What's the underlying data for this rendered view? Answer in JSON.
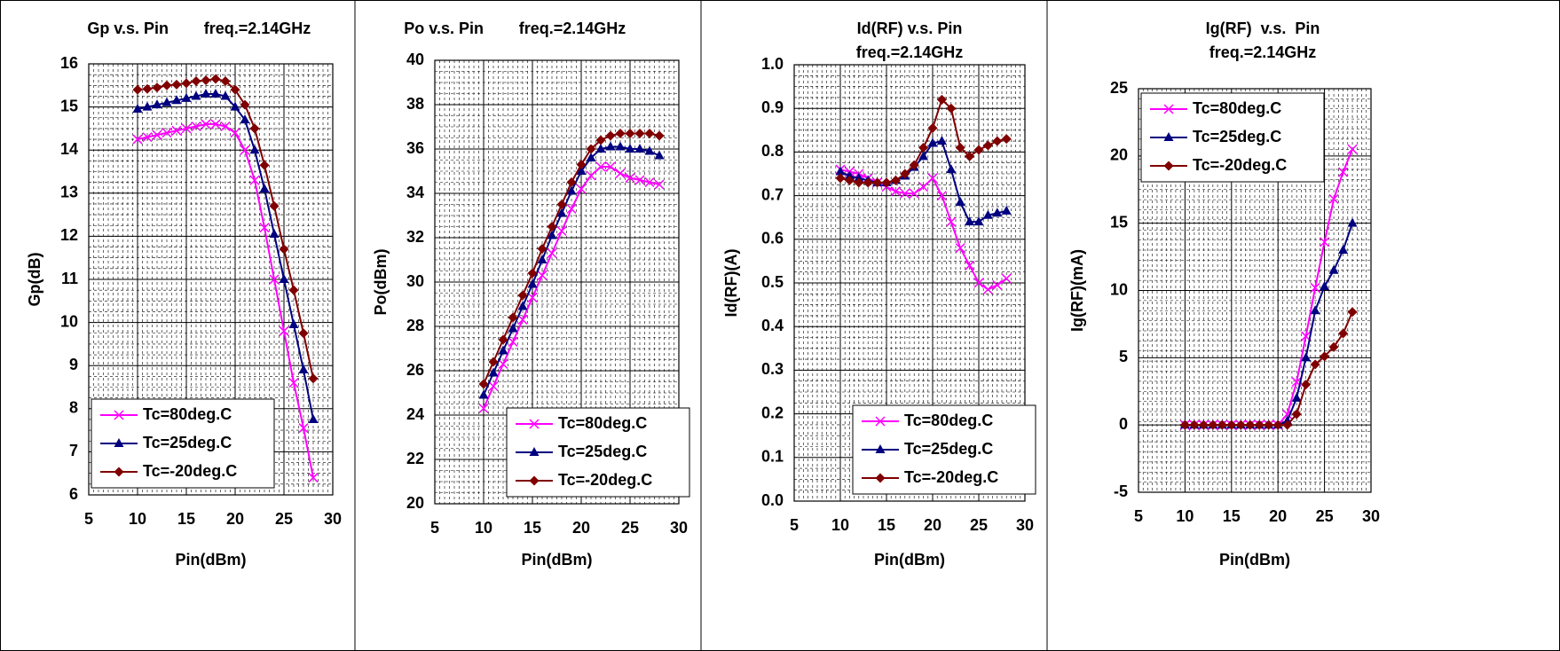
{
  "chart_data": [
    {
      "type": "line",
      "title": "Gp v.s. Pin",
      "subtitle": "freq.=2.14GHz",
      "xlabel": "Pin(dBm)",
      "ylabel": "Gp(dB)",
      "x": [
        10,
        11,
        12,
        13,
        14,
        15,
        16,
        17,
        18,
        19,
        20,
        21,
        22,
        23,
        24,
        25,
        26,
        27,
        28
      ],
      "xlim": [
        5,
        30
      ],
      "xticks": [
        5,
        10,
        15,
        20,
        25,
        30
      ],
      "ylim": [
        6,
        16
      ],
      "yticks": [
        6,
        7,
        8,
        9,
        10,
        11,
        12,
        13,
        14,
        15,
        16
      ],
      "grid": true,
      "legend": "lower left",
      "series": [
        {
          "name": "Tc=80deg.C",
          "color": "#ff00ff",
          "marker": "x",
          "values": [
            14.25,
            14.3,
            14.35,
            14.4,
            14.45,
            14.5,
            14.55,
            14.6,
            14.6,
            14.55,
            14.4,
            14.0,
            13.3,
            12.2,
            11.0,
            9.8,
            8.6,
            7.55,
            6.4
          ]
        },
        {
          "name": "Tc=25deg.C",
          "color": "#000080",
          "marker": "triangle",
          "values": [
            14.95,
            15.0,
            15.05,
            15.1,
            15.15,
            15.2,
            15.25,
            15.3,
            15.3,
            15.25,
            15.0,
            14.7,
            14.0,
            13.1,
            12.05,
            11.0,
            9.95,
            8.9,
            7.75
          ]
        },
        {
          "name": "Tc=-20deg.C",
          "color": "#800000",
          "marker": "diamond",
          "values": [
            15.4,
            15.42,
            15.45,
            15.5,
            15.52,
            15.55,
            15.6,
            15.62,
            15.65,
            15.6,
            15.4,
            15.05,
            14.5,
            13.65,
            12.7,
            11.7,
            10.75,
            9.75,
            8.7
          ]
        }
      ]
    },
    {
      "type": "line",
      "title": "Po v.s. Pin",
      "subtitle": "freq.=2.14GHz",
      "xlabel": "Pin(dBm)",
      "ylabel": "Po(dBm)",
      "x": [
        10,
        11,
        12,
        13,
        14,
        15,
        16,
        17,
        18,
        19,
        20,
        21,
        22,
        23,
        24,
        25,
        26,
        27,
        28
      ],
      "xlim": [
        5,
        30
      ],
      "xticks": [
        5,
        10,
        15,
        20,
        25,
        30
      ],
      "ylim": [
        20,
        40
      ],
      "yticks": [
        20,
        22,
        24,
        26,
        28,
        30,
        32,
        34,
        36,
        38,
        40
      ],
      "grid": true,
      "legend": "lower right",
      "series": [
        {
          "name": "Tc=80deg.C",
          "color": "#ff00ff",
          "marker": "x",
          "values": [
            24.3,
            25.3,
            26.3,
            27.3,
            28.3,
            29.3,
            30.3,
            31.3,
            32.3,
            33.3,
            34.2,
            34.8,
            35.2,
            35.2,
            34.9,
            34.7,
            34.6,
            34.5,
            34.4
          ]
        },
        {
          "name": "Tc=25deg.C",
          "color": "#000080",
          "marker": "triangle",
          "values": [
            24.9,
            25.9,
            26.9,
            27.9,
            28.9,
            29.9,
            31.0,
            32.1,
            33.1,
            34.1,
            35.0,
            35.6,
            36.0,
            36.1,
            36.1,
            36.0,
            36.0,
            35.9,
            35.7
          ]
        },
        {
          "name": "Tc=-20deg.C",
          "color": "#800000",
          "marker": "diamond",
          "values": [
            25.4,
            26.4,
            27.4,
            28.4,
            29.4,
            30.4,
            31.5,
            32.5,
            33.5,
            34.5,
            35.3,
            36.0,
            36.4,
            36.6,
            36.7,
            36.7,
            36.7,
            36.7,
            36.6
          ]
        }
      ]
    },
    {
      "type": "line",
      "title": "Id(RF) v.s. Pin",
      "subtitle": "freq.=2.14GHz",
      "xlabel": "Pin(dBm)",
      "ylabel": "Id(RF)(A)",
      "x": [
        10,
        11,
        12,
        13,
        14,
        15,
        16,
        17,
        18,
        19,
        20,
        21,
        22,
        23,
        24,
        25,
        26,
        27,
        28
      ],
      "xlim": [
        5,
        30
      ],
      "xticks": [
        5,
        10,
        15,
        20,
        25,
        30
      ],
      "ylim": [
        0,
        1
      ],
      "yticks": [
        {
          "value": 0,
          "label": "0.0"
        },
        0.1,
        0.2,
        0.3,
        0.4,
        0.5,
        0.6,
        0.7,
        0.8,
        0.9,
        {
          "value": 1,
          "label": "1.0"
        }
      ],
      "grid": true,
      "legend": "lower right",
      "series": [
        {
          "name": "Tc=80deg.C",
          "color": "#ff00ff",
          "marker": "x",
          "values": [
            0.76,
            0.755,
            0.75,
            0.74,
            0.73,
            0.72,
            0.71,
            0.705,
            0.705,
            0.72,
            0.74,
            0.7,
            0.64,
            0.58,
            0.54,
            0.5,
            0.485,
            0.495,
            0.51
          ]
        },
        {
          "name": "Tc=25deg.C",
          "color": "#000080",
          "marker": "triangle",
          "values": [
            0.755,
            0.745,
            0.74,
            0.735,
            0.73,
            0.73,
            0.735,
            0.745,
            0.765,
            0.79,
            0.82,
            0.825,
            0.76,
            0.685,
            0.64,
            0.64,
            0.655,
            0.66,
            0.665
          ]
        },
        {
          "name": "Tc=-20deg.C",
          "color": "#800000",
          "marker": "diamond",
          "values": [
            0.74,
            0.735,
            0.73,
            0.73,
            0.73,
            0.73,
            0.735,
            0.75,
            0.77,
            0.81,
            0.855,
            0.92,
            0.9,
            0.81,
            0.79,
            0.805,
            0.815,
            0.825,
            0.83
          ]
        }
      ]
    },
    {
      "type": "line",
      "title": "Ig(RF)  v.s.  Pin",
      "subtitle": "freq.=2.14GHz",
      "xlabel": "Pin(dBm)",
      "ylabel": "Ig(RF)(mA)",
      "x": [
        10,
        11,
        12,
        13,
        14,
        15,
        16,
        17,
        18,
        19,
        20,
        21,
        22,
        23,
        24,
        25,
        26,
        27,
        28
      ],
      "xlim": [
        5,
        30
      ],
      "xticks": [
        5,
        10,
        15,
        20,
        25,
        30
      ],
      "ylim": [
        -5,
        25
      ],
      "yticks": [
        -5,
        0,
        5,
        10,
        15,
        20,
        25
      ],
      "grid": true,
      "legend": "upper left",
      "series": [
        {
          "name": "Tc=80deg.C",
          "color": "#ff00ff",
          "marker": "x",
          "values": [
            0,
            0,
            0,
            0,
            0,
            0,
            0,
            0,
            0,
            0,
            0,
            0.8,
            3.2,
            6.6,
            10.2,
            13.6,
            16.8,
            18.8,
            20.5
          ]
        },
        {
          "name": "Tc=25deg.C",
          "color": "#000080",
          "marker": "triangle",
          "values": [
            0,
            0,
            0,
            0,
            0,
            0,
            0,
            0,
            0,
            0,
            0,
            0.3,
            2.0,
            5.0,
            8.5,
            10.3,
            11.5,
            13.0,
            15.0
          ]
        },
        {
          "name": "Tc=-20deg.C",
          "color": "#800000",
          "marker": "diamond",
          "values": [
            0,
            0,
            0,
            0,
            0,
            0,
            0,
            0,
            0,
            0,
            0,
            0,
            0.8,
            3.0,
            4.5,
            5.1,
            5.8,
            6.8,
            8.4
          ]
        }
      ]
    }
  ]
}
